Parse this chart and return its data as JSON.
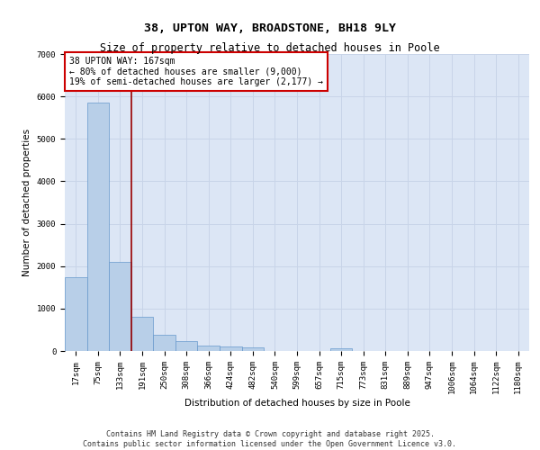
{
  "title": "38, UPTON WAY, BROADSTONE, BH18 9LY",
  "subtitle": "Size of property relative to detached houses in Poole",
  "xlabel": "Distribution of detached houses by size in Poole",
  "ylabel": "Number of detached properties",
  "categories": [
    "17sqm",
    "75sqm",
    "133sqm",
    "191sqm",
    "250sqm",
    "308sqm",
    "366sqm",
    "424sqm",
    "482sqm",
    "540sqm",
    "599sqm",
    "657sqm",
    "715sqm",
    "773sqm",
    "831sqm",
    "889sqm",
    "947sqm",
    "1006sqm",
    "1064sqm",
    "1122sqm",
    "1180sqm"
  ],
  "values": [
    1750,
    5850,
    2100,
    810,
    380,
    230,
    130,
    100,
    75,
    0,
    0,
    0,
    60,
    0,
    0,
    0,
    0,
    0,
    0,
    0,
    0
  ],
  "bar_color": "#b8cfe8",
  "bar_edge_color": "#6699cc",
  "grid_color": "#c8d4e8",
  "bg_color": "#dce6f5",
  "vline_x": 2.5,
  "vline_color": "#990000",
  "annotation_text": "38 UPTON WAY: 167sqm\n← 80% of detached houses are smaller (9,000)\n19% of semi-detached houses are larger (2,177) →",
  "annotation_box_color": "#cc0000",
  "ylim": [
    0,
    7000
  ],
  "yticks": [
    0,
    1000,
    2000,
    3000,
    4000,
    5000,
    6000,
    7000
  ],
  "footer_line1": "Contains HM Land Registry data © Crown copyright and database right 2025.",
  "footer_line2": "Contains public sector information licensed under the Open Government Licence v3.0.",
  "title_fontsize": 9.5,
  "subtitle_fontsize": 8.5,
  "axis_label_fontsize": 7.5,
  "tick_fontsize": 6.5,
  "annotation_fontsize": 7,
  "footer_fontsize": 6
}
